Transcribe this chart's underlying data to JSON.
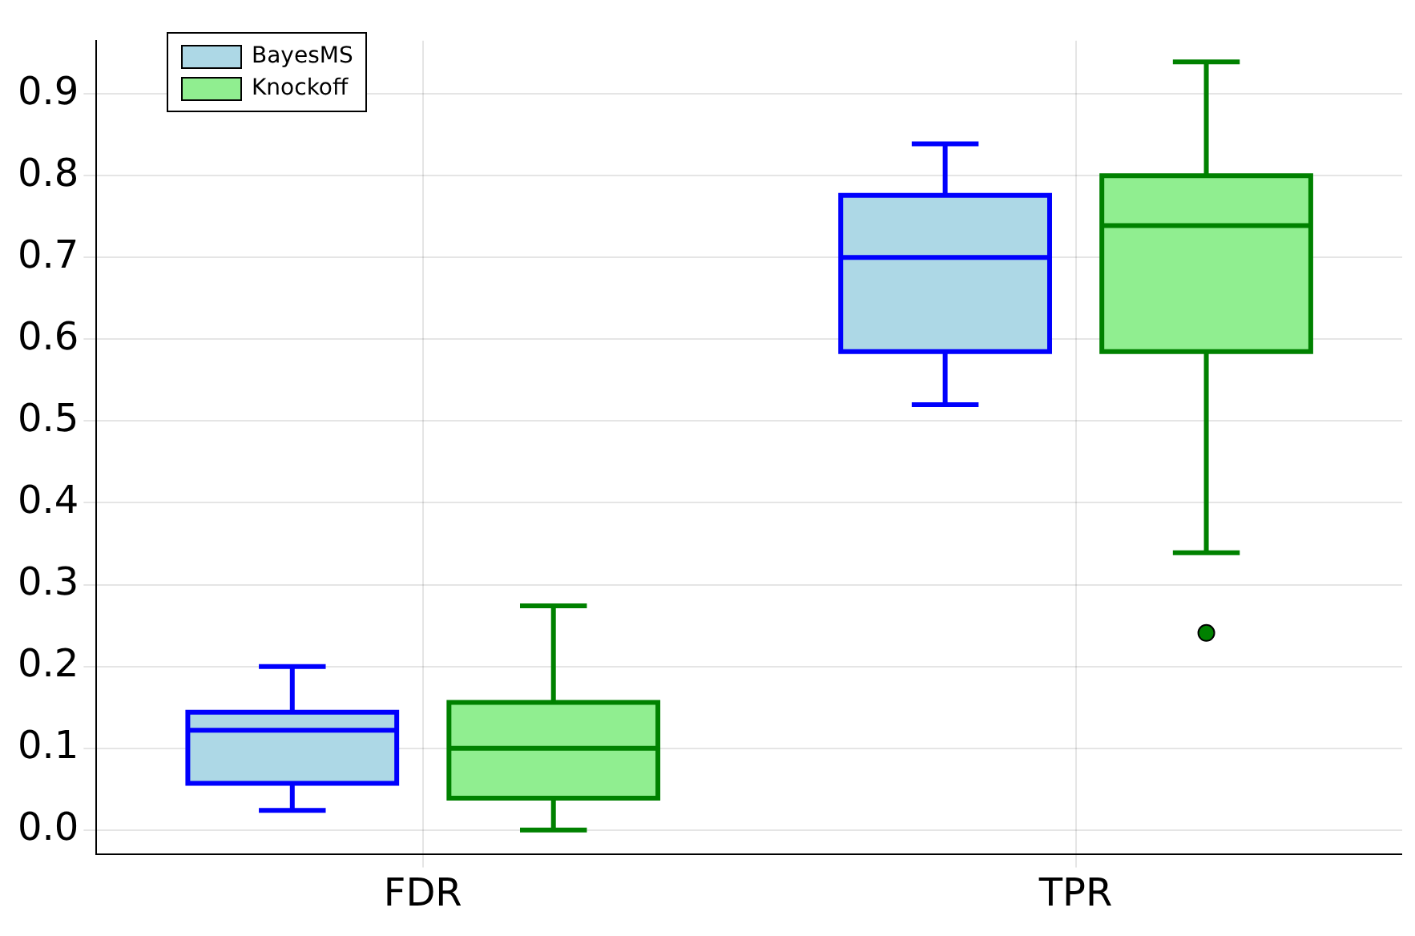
{
  "chart_data": {
    "type": "box",
    "categories": [
      "FDR",
      "TPR"
    ],
    "series": [
      {
        "name": "BayesMS",
        "color": "#add8e6",
        "boxes": [
          {
            "low": 0.024,
            "q1": 0.057,
            "median": 0.122,
            "q3": 0.144,
            "high": 0.2
          },
          {
            "low": 0.52,
            "q1": 0.585,
            "median": 0.7,
            "q3": 0.776,
            "high": 0.839
          }
        ]
      },
      {
        "name": "Knockoff",
        "color": "#90ee90",
        "boxes": [
          {
            "low": 0.0,
            "q1": 0.039,
            "median": 0.1,
            "q3": 0.156,
            "high": 0.274
          },
          {
            "low": 0.339,
            "q1": 0.585,
            "median": 0.739,
            "q3": 0.8,
            "high": 0.939,
            "outliers": [
              0.241
            ]
          }
        ]
      }
    ],
    "ylim": [
      -0.03,
      0.965
    ],
    "yticks": [
      {
        "value": 0,
        "label": "0.0"
      },
      0.1,
      0.2,
      0.3,
      0.4,
      0.5,
      0.6,
      0.7,
      0.8,
      0.9
    ],
    "grid": true,
    "legend": "top left"
  }
}
